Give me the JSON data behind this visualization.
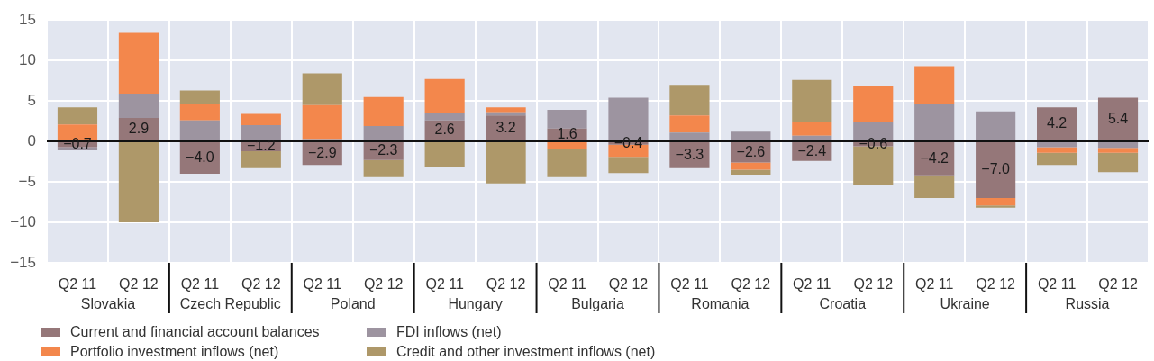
{
  "chart_data": {
    "type": "bar",
    "stacked": true,
    "categories": [
      "Q2 11",
      "Q2 12",
      "Q2 11",
      "Q2 12",
      "Q2 11",
      "Q2 12",
      "Q2 11",
      "Q2 12",
      "Q2 11",
      "Q2 12",
      "Q2 11",
      "Q2 12",
      "Q2 11",
      "Q2 12",
      "Q2 11",
      "Q2 12",
      "Q2 11",
      "Q2 12"
    ],
    "series": [
      {
        "name": "Current and financial account balances",
        "color": "#957779",
        "values": [
          -0.7,
          2.9,
          -4.0,
          -1.2,
          -2.9,
          -2.3,
          2.6,
          3.2,
          1.6,
          -0.4,
          -3.3,
          -2.6,
          -2.4,
          -0.6,
          -4.2,
          -7.0,
          4.2,
          5.4
        ],
        "value_labels": [
          "−0.7",
          "2.9",
          "−4.0",
          "−1.2",
          "−2.9",
          "−2.3",
          "2.6",
          "3.2",
          "1.6",
          "−0.4",
          "−3.3",
          "−2.6",
          "−2.4",
          "−0.6",
          "−4.2",
          "−7.0",
          "4.2",
          "5.4"
        ]
      },
      {
        "name": "FDI inflows (net)",
        "color": "#9d94a0",
        "values": [
          -0.4,
          3.0,
          2.6,
          2.0,
          0.3,
          1.9,
          0.9,
          0.4,
          2.3,
          5.4,
          1.1,
          1.2,
          0.7,
          2.4,
          4.6,
          3.7,
          -0.7,
          -0.8
        ]
      },
      {
        "name": "Portfolio investment inflows (net)",
        "color": "#f3874c",
        "values": [
          2.1,
          7.5,
          2.0,
          1.4,
          4.2,
          3.6,
          4.2,
          0.6,
          -1.0,
          -1.5,
          2.1,
          -0.9,
          1.7,
          4.4,
          4.7,
          -0.9,
          -0.7,
          -0.6
        ]
      },
      {
        "name": "Credit and other investment inflows (net)",
        "color": "#ae9869",
        "values": [
          2.1,
          -10.0,
          1.7,
          -2.1,
          3.9,
          -2.1,
          -3.1,
          -5.2,
          -3.4,
          -2.0,
          3.8,
          -0.6,
          5.2,
          -4.8,
          -2.8,
          -0.3,
          -1.5,
          -2.4
        ]
      }
    ],
    "ylim": [
      -15,
      15
    ],
    "yticks": [
      {
        "value": -15,
        "label": "−15"
      },
      {
        "value": -10,
        "label": "−10"
      },
      {
        "value": -5,
        "label": "−5"
      },
      0,
      5,
      10,
      15
    ],
    "grid": true,
    "legend": "bottom",
    "annotations": [
      "Slovakia",
      "Czech Republic",
      "Poland",
      "Hungary",
      "Bulgaria",
      "Romania",
      "Croatia",
      "Ukraine",
      "Russia"
    ]
  }
}
